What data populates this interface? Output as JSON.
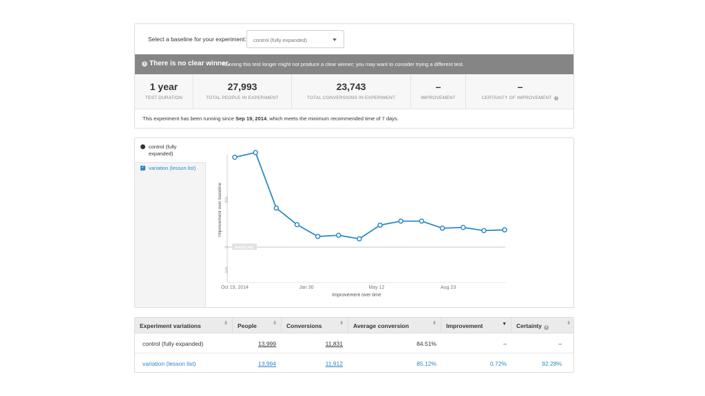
{
  "baseline": {
    "label": "Select a baseline for your experiment:",
    "selected": "control (fully expanded)"
  },
  "banner": {
    "icon": "info-icon",
    "headline": "There is no clear winner.",
    "detail": "Running this test longer might not produce a clear winner; you may want to consider trying a different test."
  },
  "stats": [
    {
      "value": "1 year",
      "label": "TEST DURATION"
    },
    {
      "value": "27,993",
      "label": "TOTAL PEOPLE IN EXPERIMENT"
    },
    {
      "value": "23,743",
      "label": "TOTAL CONVERSIONS IN EXPERIMENT"
    },
    {
      "value": "–",
      "label": "IMPROVEMENT"
    },
    {
      "value": "–",
      "label": "CERTAINTY OF IMPROVEMENT"
    }
  ],
  "running_note": {
    "prefix": "This experiment has been running since ",
    "date": "Sep 19, 2014",
    "suffix": ", which meets the minimum recommended time of 7 days."
  },
  "legend": {
    "control": "control (fully expanded)",
    "variation": "variation (lesson list)"
  },
  "colors": {
    "accent": "#2a88c8",
    "banner": "#858585",
    "baseline_badge": "#e0e0e0"
  },
  "chart_data": {
    "type": "line",
    "ylabel": "Improvement over baseline",
    "xlabel": "Improvement over time",
    "baseline_label": "BASELINE",
    "x_tick_labels": [
      "Oct 19, 2014",
      "Jan 30",
      "May 12",
      "Aug 23"
    ],
    "y_tick_labels": [
      "2%",
      "0",
      "-1%"
    ],
    "y_ticks": [
      2,
      0,
      -1
    ],
    "ylim": [
      -1.5,
      4.2
    ],
    "grid": false,
    "series": [
      {
        "name": "variation (lesson list)",
        "values": [
          3.8,
          4.0,
          1.65,
          0.95,
          0.45,
          0.5,
          0.35,
          0.93,
          1.1,
          1.1,
          0.8,
          0.83,
          0.7,
          0.73
        ]
      }
    ]
  },
  "table": {
    "headers": [
      "Experiment variations",
      "People",
      "Conversions",
      "Average conversion",
      "Improvement",
      "Certainty"
    ],
    "rows": [
      {
        "name": "control (fully expanded)",
        "people": "13,999",
        "conversions": "11,831",
        "avg": "84.51%",
        "improvement": "–",
        "certainty": "–"
      },
      {
        "name": "variation (lesson list)",
        "people": "13,994",
        "conversions": "11,912",
        "avg": "85.12%",
        "improvement": "0.72%",
        "certainty": "92.28%"
      }
    ]
  }
}
